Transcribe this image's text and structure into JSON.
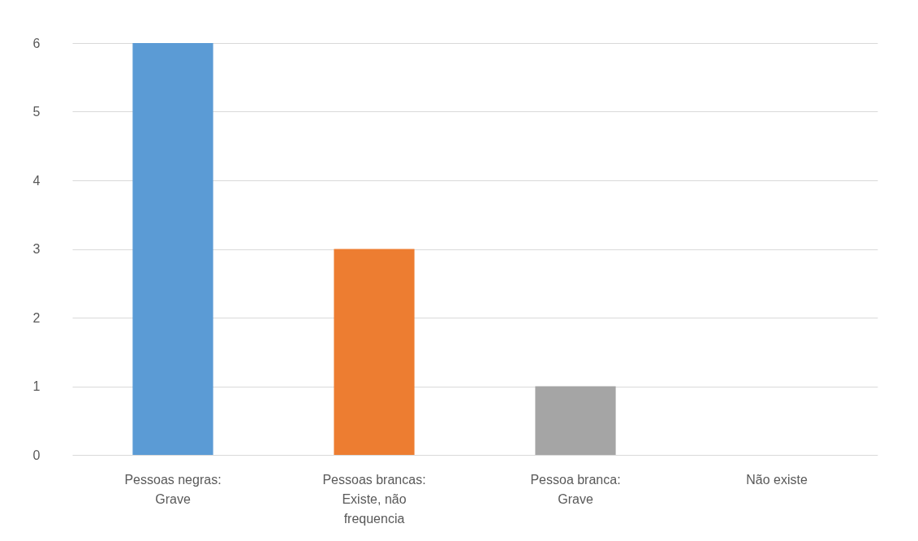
{
  "chart_data": {
    "type": "bar",
    "categories": [
      "Pessoas negras: Grave",
      "Pessoas brancas: Existe, não frequencia",
      "Pessoa branca: Grave",
      "Não existe"
    ],
    "values": [
      6,
      3,
      1,
      0
    ],
    "colors": [
      "#5b9bd5",
      "#ed7d31",
      "#a5a5a5",
      "#ffc000"
    ],
    "ylim": [
      0,
      6
    ],
    "yticks": [
      0,
      1,
      2,
      3,
      4,
      5,
      6
    ],
    "grid": "y"
  }
}
